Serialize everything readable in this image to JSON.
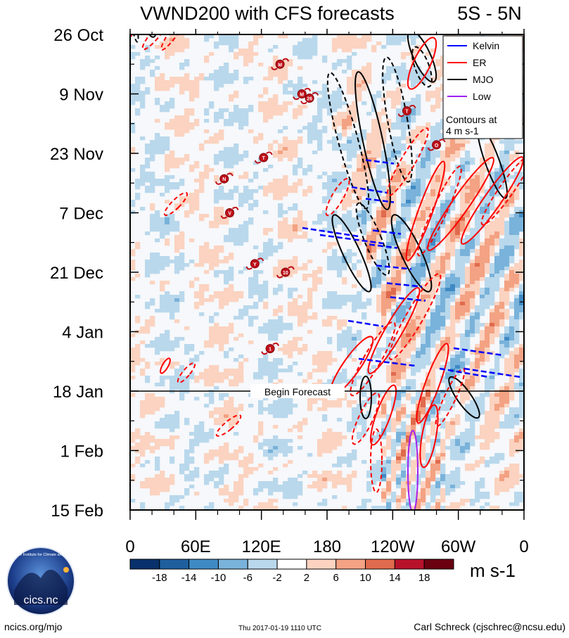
{
  "chart_data": {
    "type": "heatmap",
    "title": "VWND200 with CFS forecasts",
    "region": "5S - 5N",
    "y_tick_labels": [
      "26 Oct",
      "9 Nov",
      "23 Nov",
      "7 Dec",
      "21 Dec",
      "4 Jan",
      "18 Jan",
      "1 Feb",
      "15 Feb"
    ],
    "x_tick_labels": [
      "0",
      "60E",
      "120E",
      "180",
      "120W",
      "60W",
      "0"
    ],
    "x_range_deg_east": [
      0,
      360
    ],
    "y_range_days_since_26oct": [
      0,
      112
    ],
    "forecast_start_day": 84,
    "forecast_label": "Begin Forecast",
    "units": "m s-1",
    "colorbar": {
      "boundaries": [
        -22,
        -18,
        -14,
        -10,
        -6,
        -2,
        2,
        6,
        10,
        14,
        18,
        22
      ],
      "tick_labels": [
        "-18",
        "-14",
        "-10",
        "-6",
        "-2",
        "2",
        "6",
        "10",
        "14",
        "18"
      ],
      "colors": [
        "#08306b",
        "#1f5f9e",
        "#3f8ac4",
        "#79b2da",
        "#b9d8ec",
        "#ffffff",
        "#fbd3c0",
        "#f3a283",
        "#e06a4d",
        "#b8122b",
        "#6a0010"
      ]
    },
    "legend": {
      "position": "top-right",
      "entries": [
        {
          "name": "Kelvin",
          "color": "#0000ff"
        },
        {
          "name": "ER",
          "color": "#ff0000"
        },
        {
          "name": "MJO",
          "color": "#000000"
        },
        {
          "name": "Low",
          "color": "#a020f0"
        }
      ],
      "contour_note_line1": "Contours at",
      "contour_note_line2": "4 m s-1"
    },
    "storms": [
      {
        "label": "M",
        "lon": 137,
        "day": 7
      },
      {
        "label": "M",
        "lon": 157,
        "day": 14
      },
      {
        "label": "26",
        "lon": 164,
        "day": 15
      },
      {
        "label": "T",
        "lon": 253,
        "day": 18
      },
      {
        "label": "O",
        "lon": 280,
        "day": 26
      },
      {
        "label": "T",
        "lon": 122,
        "day": 29
      },
      {
        "label": "N",
        "lon": 86,
        "day": 34
      },
      {
        "label": "V",
        "lon": 91,
        "day": 42
      },
      {
        "label": "Y",
        "lon": 114,
        "day": 54
      },
      {
        "label": "10",
        "lon": 142,
        "day": 56
      },
      {
        "label": "1",
        "lon": 128,
        "day": 74
      }
    ]
  },
  "footer": {
    "logo_text": "cics.nc",
    "logo_ring_text": "Cooperative Institute for Climate and Satellites",
    "left": "ncics.org/mjo",
    "center": "Thu 2017-01-19 1110 UTC",
    "right": "Carl Schreck (cjschrec@ncsu.edu)"
  }
}
